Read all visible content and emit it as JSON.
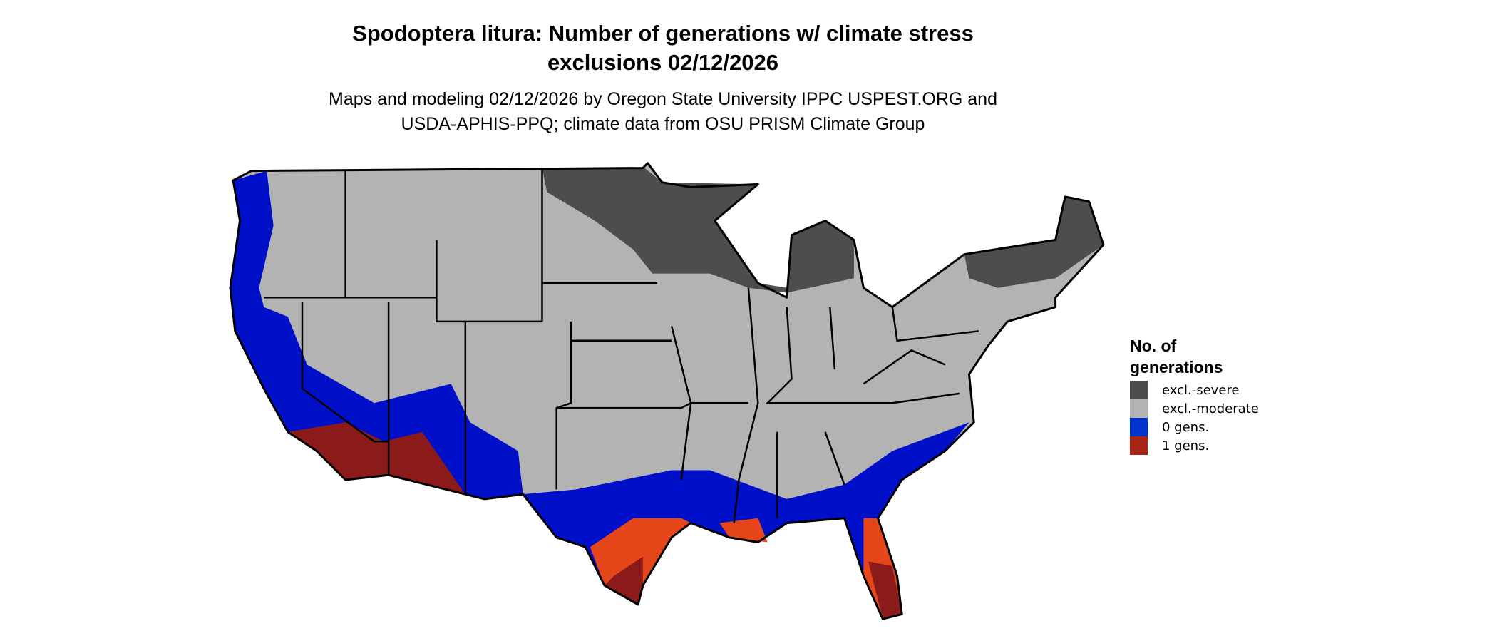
{
  "title": {
    "line1": "Spodoptera litura: Number of generations w/ climate stress",
    "line2": "exclusions 02/12/2026"
  },
  "subtitle": {
    "line1": "Maps and modeling 02/12/2026 by Oregon State University IPPC USPEST.ORG and",
    "line2": "USDA-APHIS-PPQ; climate data from OSU PRISM Climate Group"
  },
  "legend": {
    "title_line1": "No. of",
    "title_line2": "generations",
    "items": [
      {
        "label": "excl.-severe",
        "color": "#4d4d4d"
      },
      {
        "label": "excl.-moderate",
        "color": "#b3b3b3"
      },
      {
        "label": "0 gens.",
        "color": "#0033cc"
      },
      {
        "label": "1 gens.",
        "color": "#a82415"
      }
    ]
  },
  "map_colors": {
    "severe": "#4d4d4d",
    "moderate": "#b3b3b3",
    "zero": "#0010c8",
    "one_dark": "#8b1a1a",
    "one_light": "#e5461a",
    "border": "#000000"
  }
}
